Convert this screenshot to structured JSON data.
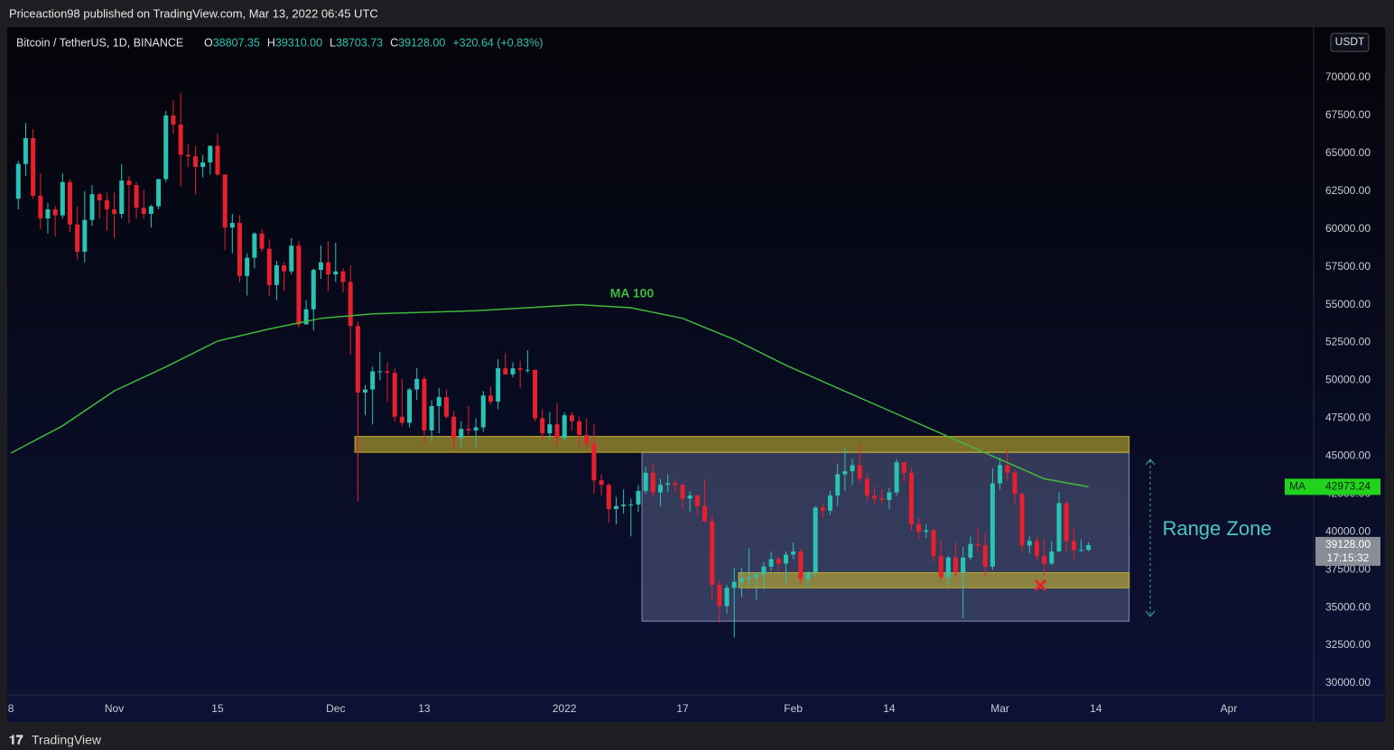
{
  "header": {
    "published": "Priceaction98 published on TradingView.com, Mar 13, 2022 06:45 UTC",
    "brand": "TradingView"
  },
  "chart_data": {
    "type": "candlestick",
    "legend": {
      "symbol": "Bitcoin / TetherUS, 1D, BINANCE",
      "ohlc_labels": [
        "O",
        "H",
        "L",
        "C"
      ],
      "ohlc_values": [
        "38807.35",
        "39310.00",
        "38703.73",
        "39128.00"
      ],
      "change": "+320.64 (+0.83%)",
      "currency": "USDT",
      "countdown": "17:15:32"
    },
    "up_color": "#2ac2b3",
    "down_color": "#e8202e",
    "x": [
      -13,
      -12,
      -11,
      -10,
      -9,
      -8,
      -7,
      -6,
      -5,
      -4,
      -3,
      -2,
      -1,
      0,
      1,
      2,
      3,
      4,
      5,
      6,
      7,
      8,
      9,
      10,
      11,
      12,
      13,
      14,
      15,
      16,
      17,
      18,
      19,
      20,
      21,
      22,
      23,
      24,
      25,
      26,
      27,
      28,
      29,
      30,
      31,
      32,
      33,
      34,
      35,
      36,
      37,
      38,
      39,
      40,
      41,
      42,
      43,
      44,
      45,
      46,
      47,
      48,
      49,
      50,
      51,
      52,
      53,
      54,
      55,
      56,
      57,
      58,
      59,
      60,
      61,
      62,
      63,
      64,
      65,
      66,
      67,
      68,
      69,
      70,
      71,
      72,
      73,
      74,
      75,
      76,
      77,
      78,
      79,
      80,
      81,
      82,
      83,
      84,
      85,
      86,
      87,
      88,
      89,
      90,
      91,
      92,
      93,
      94,
      95,
      96,
      97,
      98,
      99,
      100,
      101,
      102,
      103,
      104,
      105,
      106,
      107,
      108,
      109,
      110,
      111,
      112,
      113,
      114,
      115,
      116,
      117,
      118,
      119,
      120,
      121,
      122,
      123,
      124,
      125,
      126,
      127,
      128,
      129,
      130,
      131,
      132
    ],
    "open": [
      62000,
      64300,
      66000,
      62200,
      60700,
      61300,
      60900,
      63100,
      60300,
      58500,
      60600,
      62300,
      61900,
      61300,
      61000,
      63200,
      62900,
      61400,
      61000,
      61500,
      63300,
      67500,
      66900,
      64900,
      64800,
      64100,
      64400,
      65500,
      63600,
      60100,
      60400,
      56900,
      58100,
      59700,
      58700,
      56300,
      57600,
      57200,
      58900,
      53700,
      54700,
      57300,
      57800,
      57000,
      57200,
      56500,
      53600,
      49200,
      49400,
      50600,
      50600,
      50500,
      47600,
      47200,
      49400,
      50100,
      46700,
      48300,
      48900,
      47600,
      46200,
      46800,
      46700,
      46900,
      49000,
      48600,
      50800,
      50400,
      50800,
      50700,
      50700,
      47500,
      46500,
      47100,
      46200,
      47700,
      47300,
      46400,
      45800,
      43400,
      43100,
      41500,
      41700,
      41800,
      41800,
      42700,
      43900,
      42600,
      43100,
      43200,
      43100,
      42200,
      42400,
      41700,
      40700,
      36500,
      35100,
      36300,
      36700,
      36900,
      37000,
      37200,
      37700,
      38200,
      37900,
      38500,
      38700,
      36900,
      37300,
      41600,
      41400,
      42400,
      43800,
      44000,
      44400,
      43500,
      42400,
      42200,
      42100,
      42600,
      44600,
      43900,
      40500,
      40000,
      40100,
      38400,
      37000,
      38300,
      37300,
      38300,
      39200,
      39100,
      37700,
      43200,
      44400,
      43900,
      42500,
      39100,
      39400,
      38400,
      37900,
      38700,
      41900,
      39400,
      38800,
      38807.35
    ],
    "high": [
      64500,
      67000,
      66600,
      63700,
      61700,
      61500,
      63700,
      63300,
      61500,
      62500,
      62900,
      62400,
      62400,
      62400,
      64300,
      63500,
      63100,
      62600,
      61600,
      63300,
      67800,
      68500,
      69000,
      65600,
      65500,
      64900,
      65500,
      66300,
      63600,
      61000,
      60900,
      58400,
      59800,
      60000,
      59300,
      57900,
      57800,
      59400,
      59200,
      55300,
      57400,
      58900,
      59200,
      59100,
      57400,
      57600,
      53900,
      49700,
      50900,
      51900,
      51200,
      50800,
      50100,
      49500,
      50800,
      50300,
      48700,
      49500,
      49400,
      48000,
      47300,
      48300,
      47500,
      49300,
      49600,
      51400,
      51800,
      51200,
      51300,
      52000,
      50700,
      48100,
      47900,
      48500,
      47900,
      47900,
      47600,
      47500,
      47100,
      43800,
      43200,
      42300,
      42800,
      42200,
      43100,
      44300,
      44500,
      43500,
      43800,
      43500,
      43200,
      42700,
      42500,
      43500,
      41100,
      36800,
      36500,
      37600,
      37600,
      38900,
      37300,
      38000,
      38700,
      38400,
      38700,
      39300,
      38900,
      37400,
      41700,
      41900,
      42700,
      44500,
      45500,
      44800,
      45800,
      43900,
      43000,
      42800,
      42900,
      44800,
      44600,
      44200,
      40900,
      40500,
      40200,
      39500,
      38400,
      39300,
      39000,
      39700,
      40300,
      39900,
      44200,
      44900,
      45400,
      44100,
      42600,
      39700,
      39700,
      39500,
      39400,
      42600,
      42000,
      40300,
      39500,
      39310
    ],
    "low": [
      61300,
      63500,
      62000,
      60000,
      59700,
      59500,
      60700,
      59800,
      58000,
      57800,
      60200,
      60700,
      59900,
      59400,
      60700,
      60400,
      60700,
      60700,
      60100,
      61300,
      63100,
      66300,
      62800,
      64100,
      62300,
      63400,
      63600,
      63500,
      58600,
      58400,
      56500,
      55600,
      57400,
      58500,
      55600,
      55300,
      55900,
      57000,
      53500,
      53700,
      53300,
      56700,
      55900,
      56500,
      55800,
      51700,
      42000,
      47700,
      47100,
      50000,
      48600,
      47300,
      47000,
      46900,
      48700,
      45700,
      46000,
      46500,
      47500,
      45500,
      45600,
      46400,
      45600,
      46600,
      48400,
      48100,
      50400,
      50200,
      49500,
      50500,
      47300,
      46100,
      46100,
      45700,
      46000,
      46700,
      45700,
      45500,
      42500,
      42400,
      40600,
      40500,
      41200,
      39700,
      41300,
      42500,
      42300,
      41700,
      42600,
      42600,
      41500,
      41300,
      41100,
      40600,
      35500,
      34000,
      34600,
      33000,
      35700,
      36400,
      35500,
      36200,
      37400,
      37400,
      36600,
      38200,
      36600,
      36300,
      37000,
      40900,
      41100,
      41700,
      42700,
      43100,
      43200,
      42000,
      41800,
      41900,
      41500,
      42400,
      43300,
      40100,
      39500,
      39600,
      38000,
      36800,
      36400,
      37000,
      34300,
      38100,
      38600,
      37000,
      37500,
      42800,
      43400,
      41800,
      38600,
      38600,
      38100,
      37100,
      37800,
      38700,
      38600,
      38200,
      38700,
      38703.73
    ],
    "close": [
      64300,
      66000,
      62200,
      60700,
      61300,
      60900,
      63100,
      60300,
      58500,
      60600,
      62300,
      61900,
      61300,
      61000,
      63200,
      62900,
      61400,
      61000,
      61500,
      63300,
      67500,
      66900,
      64900,
      64800,
      64100,
      64400,
      65500,
      63600,
      60100,
      60400,
      56900,
      58100,
      59700,
      58700,
      56300,
      57600,
      57200,
      58900,
      53700,
      54700,
      57300,
      57800,
      57000,
      57200,
      56500,
      53600,
      49200,
      49400,
      50600,
      50600,
      50500,
      47600,
      47200,
      49400,
      50100,
      46700,
      48300,
      48900,
      47600,
      46200,
      46800,
      46700,
      46900,
      49000,
      48600,
      50800,
      50400,
      50800,
      50700,
      50700,
      47500,
      46500,
      47100,
      46200,
      47700,
      47300,
      46400,
      45800,
      43400,
      43100,
      41500,
      41700,
      41800,
      41800,
      42700,
      43900,
      42600,
      43100,
      43200,
      43100,
      42200,
      42400,
      41700,
      40700,
      36500,
      35100,
      36300,
      36700,
      36900,
      37000,
      37200,
      37700,
      38200,
      37900,
      38500,
      38700,
      36900,
      37300,
      41600,
      41400,
      42400,
      43800,
      44000,
      44400,
      43500,
      42400,
      42200,
      42100,
      42600,
      44600,
      43900,
      40500,
      40000,
      40100,
      38400,
      37000,
      38300,
      37300,
      38300,
      39200,
      39100,
      37700,
      43200,
      44400,
      43900,
      42500,
      39100,
      39400,
      38400,
      37900,
      38700,
      41900,
      39400,
      38800,
      38800,
      39128
    ],
    "ma": {
      "name": "MA 100",
      "badge": "MA",
      "color": "#3fb83c",
      "x": [
        -14,
        -7,
        0,
        7,
        14,
        21,
        28,
        35,
        42,
        49,
        56,
        63,
        70,
        77,
        84,
        91,
        98,
        105,
        112,
        119,
        126,
        132
      ],
      "values": [
        45200,
        47000,
        49300,
        50900,
        52600,
        53400,
        54100,
        54400,
        54500,
        54600,
        54800,
        55000,
        54800,
        54100,
        52700,
        51000,
        49500,
        48000,
        46500,
        45000,
        43500,
        42973.24
      ]
    },
    "shapes": [
      {
        "x": [
          71.5,
          137.5
        ],
        "y": [
          34100,
          45250
        ],
        "color": "#8f98c4",
        "opacity": 0.32
      },
      {
        "x": [
          32.6,
          137.5
        ],
        "y": [
          45250,
          46300
        ],
        "color": "#c8b42e",
        "opacity": 0.6
      },
      {
        "x": [
          84.6,
          137.5
        ],
        "y": [
          36300,
          37300
        ],
        "color": "#c8b42e",
        "opacity": 0.6
      }
    ],
    "annotation": "Range Zone",
    "xlim": [
      -14.5,
      162.5
    ],
    "xticks": [
      {
        "value": -14,
        "label": "8"
      },
      {
        "value": 0,
        "label": "Nov"
      },
      {
        "value": 14,
        "label": "15"
      },
      {
        "value": 30,
        "label": "Dec"
      },
      {
        "value": 42,
        "label": "13"
      },
      {
        "value": 61,
        "label": "2022"
      },
      {
        "value": 77,
        "label": "17"
      },
      {
        "value": 92,
        "label": "Feb"
      },
      {
        "value": 105,
        "label": "14"
      },
      {
        "value": 120,
        "label": "Mar"
      },
      {
        "value": 133,
        "label": "14"
      },
      {
        "value": 151,
        "label": "Apr"
      }
    ],
    "ylim": [
      29225,
      73338
    ],
    "yticks": [
      {
        "value": 30000,
        "label": "30000.00"
      },
      {
        "value": 32500,
        "label": "32500.00"
      },
      {
        "value": 35000,
        "label": "35000.00"
      },
      {
        "value": 37500,
        "label": "37500.00"
      },
      {
        "value": 40000,
        "label": "40000.00"
      },
      {
        "value": 42500,
        "label": "42500.00"
      },
      {
        "value": 45000,
        "label": "45000.00"
      },
      {
        "value": 47500,
        "label": "47500.00"
      },
      {
        "value": 50000,
        "label": "50000.00"
      },
      {
        "value": 52500,
        "label": "52500.00"
      },
      {
        "value": 55000,
        "label": "55000.00"
      },
      {
        "value": 57500,
        "label": "57500.00"
      },
      {
        "value": 60000,
        "label": "60000.00"
      },
      {
        "value": 62500,
        "label": "62500.00"
      },
      {
        "value": 65000,
        "label": "65000.00"
      },
      {
        "value": 67500,
        "label": "67500.00"
      },
      {
        "value": 70000,
        "label": "70000.00"
      }
    ],
    "grid": false
  }
}
